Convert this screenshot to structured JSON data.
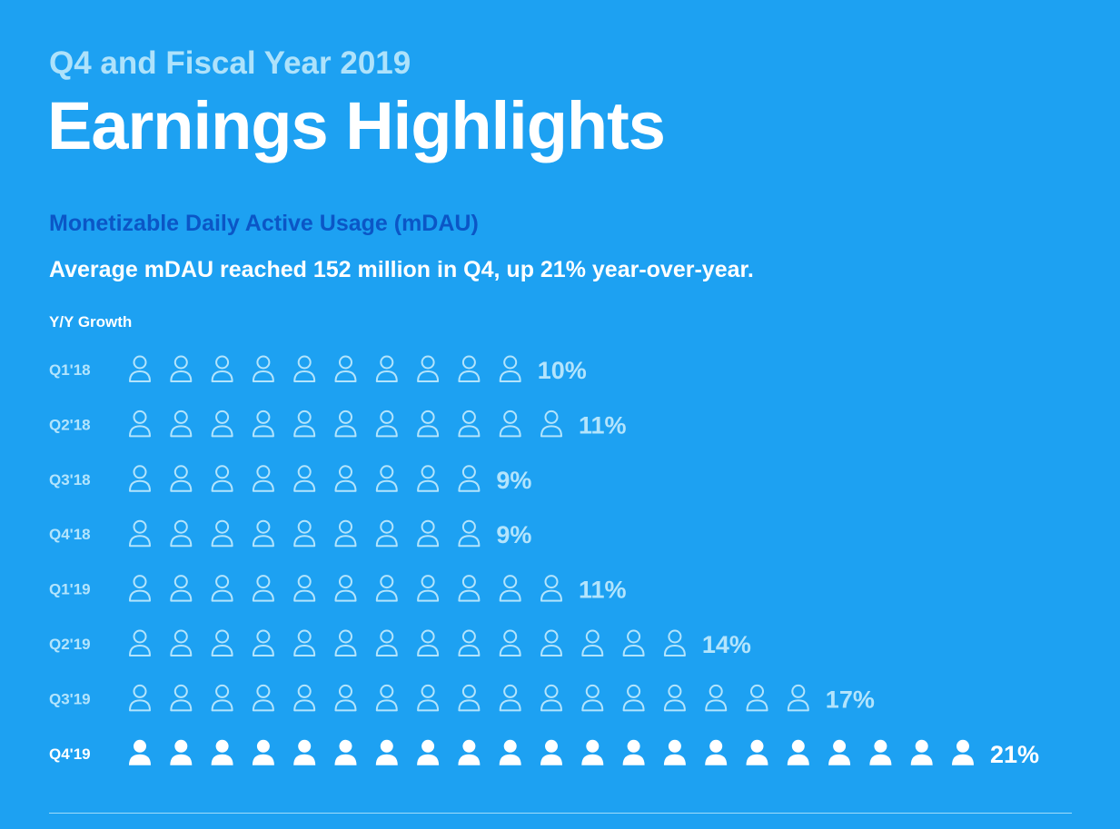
{
  "header": {
    "subtitle": "Q4 and Fiscal Year 2019",
    "title": "Earnings Highlights"
  },
  "section": {
    "heading": "Monetizable Daily Active Usage (mDAU)",
    "summary": "Average mDAU reached 152 million in Q4, up 21% year-over-year."
  },
  "chart_data": {
    "type": "bar",
    "ylabel": "Y/Y Growth",
    "categories": [
      "Q1'18",
      "Q2'18",
      "Q3'18",
      "Q4'18",
      "Q1'19",
      "Q2'19",
      "Q3'19",
      "Q4'19"
    ],
    "values": [
      10,
      11,
      9,
      9,
      11,
      14,
      17,
      21
    ],
    "value_labels": [
      "10%",
      "11%",
      "9%",
      "9%",
      "11%",
      "14%",
      "17%",
      "21%"
    ],
    "unit": "%",
    "mark": "person-icon",
    "icons_per_unit": 1,
    "highlight_category": "Q4'19",
    "colors": {
      "background": "#1da1f2",
      "muted": "#b3e4fc",
      "highlight": "#ffffff",
      "heading": "#0b56c6"
    }
  }
}
